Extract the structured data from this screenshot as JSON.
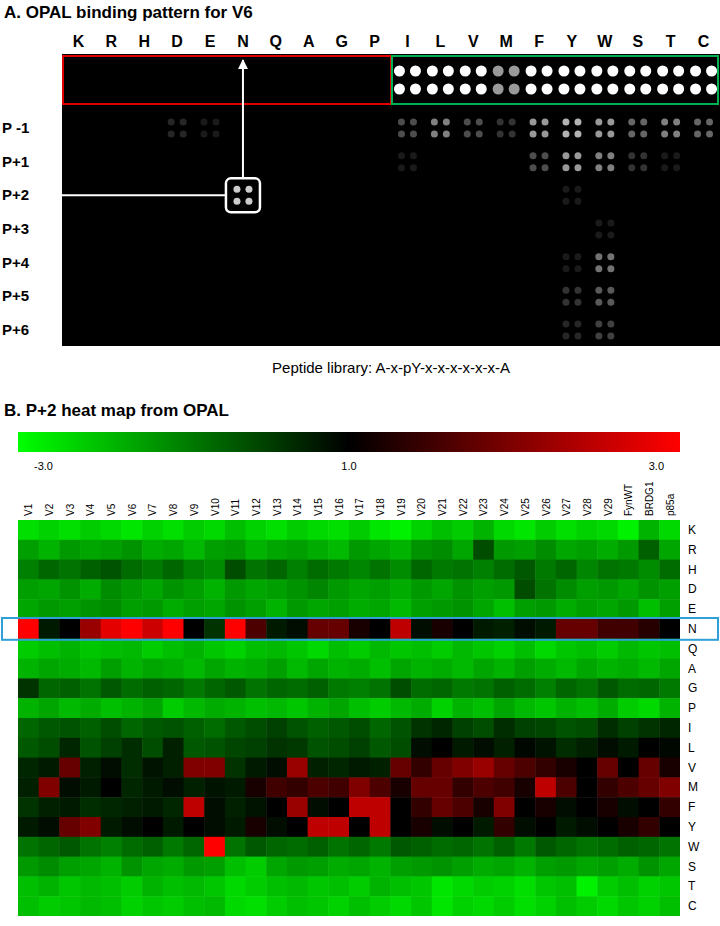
{
  "chart_data": [
    {
      "type": "dot_array",
      "title": "A. OPAL binding pattern for V6",
      "caption": "Peptide library: A-x-pY-x-x-x-x-x-x-A",
      "x": [
        "K",
        "R",
        "H",
        "D",
        "E",
        "N",
        "Q",
        "A",
        "G",
        "P",
        "I",
        "L",
        "V",
        "M",
        "F",
        "Y",
        "W",
        "S",
        "T",
        "C"
      ],
      "y": [
        null,
        "P -1",
        "P+1",
        "P+2",
        "P+3",
        "P+4",
        "P+5",
        "P+6"
      ],
      "zlim": [
        0,
        1
      ],
      "cells": [
        [
          0,
          0,
          0,
          0,
          0,
          0,
          0,
          0,
          0,
          0,
          1,
          1,
          1,
          0.6,
          1,
          1,
          1,
          1,
          1,
          1
        ],
        [
          0,
          0,
          0,
          0.15,
          0.1,
          0,
          0,
          0,
          0,
          0,
          0.3,
          0.5,
          0.3,
          0.2,
          0.6,
          0.7,
          0.6,
          0.4,
          0.5,
          0.4
        ],
        [
          0,
          0,
          0,
          0,
          0,
          0,
          0,
          0,
          0,
          0,
          0.1,
          0,
          0,
          0,
          0.3,
          0.6,
          0.5,
          0.2,
          0.1,
          0
        ],
        [
          0,
          0,
          0,
          0,
          0,
          0.8,
          0,
          0,
          0,
          0,
          0,
          0,
          0,
          0,
          0,
          0.1,
          0,
          0,
          0,
          0
        ],
        [
          0,
          0,
          0,
          0,
          0,
          0,
          0,
          0,
          0,
          0,
          0,
          0,
          0,
          0,
          0,
          0,
          0.1,
          0,
          0,
          0
        ],
        [
          0,
          0,
          0,
          0,
          0,
          0,
          0,
          0,
          0,
          0,
          0,
          0,
          0,
          0,
          0,
          0.1,
          0.45,
          0,
          0,
          0
        ],
        [
          0,
          0,
          0,
          0,
          0,
          0,
          0,
          0,
          0,
          0,
          0,
          0,
          0,
          0,
          0,
          0.2,
          0.35,
          0,
          0,
          0
        ],
        [
          0,
          0,
          0,
          0,
          0,
          0,
          0,
          0,
          0,
          0,
          0,
          0,
          0,
          0,
          0,
          0.15,
          0.25,
          0,
          0,
          0
        ]
      ]
    },
    {
      "type": "heatmap",
      "title": "B. P+2 heat map from OPAL",
      "x": [
        "V1",
        "V2",
        "V3",
        "V4",
        "V5",
        "V6",
        "V7",
        "V8",
        "V9",
        "V10",
        "V11",
        "V12",
        "V13",
        "V14",
        "V15",
        "V16",
        "V17",
        "V18",
        "V19",
        "V20",
        "V21",
        "V22",
        "V23",
        "V24",
        "V25",
        "V26",
        "V27",
        "V28",
        "V29",
        "FynWT",
        "BRDG1",
        "p85a"
      ],
      "y": [
        "K",
        "R",
        "H",
        "D",
        "E",
        "N",
        "Q",
        "A",
        "G",
        "P",
        "I",
        "L",
        "V",
        "M",
        "F",
        "Y",
        "W",
        "S",
        "T",
        "C"
      ],
      "colorbar": {
        "range": [
          -3,
          3
        ],
        "ticks": [
          {
            "value": -3,
            "label": "-3.0"
          },
          {
            "value": 1,
            "label": "1.0"
          },
          {
            "value": 3,
            "label": "3.0"
          }
        ]
      },
      "cells": [
        [
          -2.5,
          -2.3,
          -2.5,
          -2.2,
          -2.4,
          -2.6,
          -2.3,
          -2.5,
          -2.2,
          -2.4,
          -2.0,
          -2.3,
          -2.5,
          -2.2,
          -2.4,
          -2.5,
          -2.2,
          -2.6,
          -2.8,
          -2.3,
          -2.0,
          -2.2,
          -1.8,
          -2.4,
          -2.6,
          -2.2,
          -2.5,
          -2.3,
          -2.4,
          -2.8,
          -1.8,
          -2.4
        ],
        [
          -1.5,
          -1.8,
          -1.4,
          -1.6,
          -1.5,
          -1.3,
          -1.7,
          -1.6,
          -1.9,
          -1.5,
          -1.4,
          -1.8,
          -1.6,
          -1.5,
          -1.7,
          -1.9,
          -1.4,
          -1.6,
          -1.8,
          -1.3,
          -1.2,
          -1.6,
          -0.2,
          -1.4,
          -1.5,
          -1.2,
          -1.6,
          -1.5,
          -1.7,
          -1.4,
          -0.5,
          -1.6
        ],
        [
          -1.0,
          -0.6,
          -0.8,
          -0.5,
          -0.3,
          -0.7,
          -0.9,
          -0.6,
          -1.0,
          -1.2,
          -0.2,
          -0.8,
          -0.6,
          -1.0,
          -0.7,
          -0.9,
          -1.1,
          -0.8,
          -1.2,
          -0.6,
          -0.9,
          -0.8,
          -1.0,
          -0.7,
          -0.4,
          -0.9,
          -0.6,
          -1.1,
          -0.8,
          -0.9,
          -1.2,
          -0.7
        ],
        [
          -1.5,
          -1.6,
          -1.3,
          -1.7,
          -1.2,
          -1.4,
          -1.6,
          -1.3,
          -1.5,
          -1.8,
          -1.4,
          -1.6,
          -1.5,
          -1.3,
          -1.1,
          -1.4,
          -1.6,
          -1.5,
          -1.7,
          -1.4,
          -1.6,
          -1.3,
          -1.5,
          -1.4,
          -0.2,
          -0.8,
          -1.2,
          -1.5,
          -1.4,
          -1.6,
          -1.3,
          -1.5
        ],
        [
          -1.6,
          -1.4,
          -1.5,
          -1.3,
          -1.2,
          -1.5,
          -1.4,
          -1.7,
          -1.5,
          -1.6,
          -1.3,
          -1.5,
          -1.8,
          -1.4,
          -1.6,
          -1.5,
          -1.7,
          -1.6,
          -1.9,
          -1.5,
          -1.4,
          -1.3,
          -1.6,
          -2.0,
          -1.5,
          -1.4,
          -1.7,
          -1.5,
          -1.6,
          -1.4,
          -2.0,
          -1.5
        ],
        [
          3.0,
          0.6,
          1.0,
          2.2,
          2.8,
          3.0,
          2.6,
          3.0,
          1.0,
          0.2,
          3.0,
          1.6,
          0.6,
          0.8,
          1.8,
          1.8,
          1.2,
          1.0,
          2.5,
          0.8,
          1.2,
          1.0,
          0.6,
          0.5,
          0.8,
          0.6,
          1.8,
          1.8,
          1.5,
          1.5,
          1.3,
          1.0
        ],
        [
          -2.2,
          -2.0,
          -1.8,
          -2.1,
          -2.0,
          -1.9,
          -2.2,
          -2.0,
          -1.8,
          -2.1,
          -2.3,
          -2.0,
          -1.9,
          -2.1,
          -2.4,
          -2.0,
          -2.2,
          -1.9,
          -2.1,
          -2.0,
          -2.2,
          -1.9,
          -2.1,
          -2.3,
          -2.0,
          -2.4,
          -2.1,
          -2.0,
          -2.2,
          -1.9,
          -2.1,
          -2.0
        ],
        [
          -1.8,
          -1.6,
          -1.7,
          -1.9,
          -1.5,
          -1.8,
          -1.6,
          -1.7,
          -1.9,
          -1.6,
          -1.8,
          -1.7,
          -1.5,
          -1.9,
          -1.6,
          -1.8,
          -1.7,
          -2.0,
          -1.6,
          -1.8,
          -1.7,
          -1.9,
          -1.6,
          -1.8,
          -1.5,
          -1.7,
          -1.9,
          -1.6,
          -1.8,
          -1.7,
          -1.9,
          -1.6
        ],
        [
          0.2,
          -0.6,
          -0.5,
          -0.8,
          -0.4,
          -0.7,
          -0.5,
          -0.6,
          -0.9,
          -0.6,
          -0.4,
          -0.8,
          -0.6,
          -0.7,
          -0.5,
          -0.9,
          -1.0,
          -0.8,
          -0.2,
          -0.7,
          -0.6,
          -0.9,
          -0.8,
          -0.5,
          -0.7,
          -1.0,
          -0.6,
          -0.8,
          -0.4,
          -0.7,
          -0.6,
          -0.9
        ],
        [
          -1.8,
          -1.6,
          -1.9,
          -1.7,
          -2.0,
          -1.8,
          -1.6,
          -2.2,
          -1.9,
          -1.7,
          -1.8,
          -2.0,
          -1.9,
          -2.1,
          -1.8,
          -1.6,
          -2.0,
          -2.2,
          -1.9,
          -1.7,
          -2.3,
          -1.8,
          -2.0,
          -1.6,
          -1.9,
          -2.1,
          -1.8,
          -2.0,
          -1.7,
          -2.2,
          -2.4,
          -1.8
        ],
        [
          -0.6,
          -0.4,
          -0.3,
          -0.5,
          -0.2,
          -0.6,
          -0.4,
          -0.3,
          -0.5,
          -0.7,
          -0.4,
          -0.2,
          0.0,
          -0.3,
          -0.5,
          -0.4,
          -0.2,
          -0.6,
          -0.3,
          0.2,
          0.4,
          0.0,
          -0.2,
          0.3,
          0.0,
          -0.1,
          -0.3,
          -0.2,
          0.3,
          0.0,
          0.2,
          0.4
        ],
        [
          -0.4,
          -0.2,
          0.4,
          -0.3,
          0.0,
          0.3,
          -0.2,
          0.5,
          -0.4,
          -0.3,
          -0.1,
          0.0,
          0.2,
          0.1,
          -0.3,
          -0.2,
          0.0,
          -0.4,
          -0.2,
          0.8,
          1.0,
          0.6,
          0.8,
          0.5,
          0.9,
          0.7,
          0.3,
          0.5,
          0.8,
          0.6,
          1.0,
          0.9
        ],
        [
          0.4,
          0.6,
          1.8,
          0.5,
          0.8,
          0.3,
          0.7,
          0.5,
          2.0,
          2.0,
          0.2,
          0.6,
          0.8,
          2.2,
          0.5,
          0.4,
          0.6,
          0.5,
          1.8,
          1.4,
          1.8,
          2.0,
          2.2,
          1.8,
          1.6,
          1.4,
          1.2,
          1.0,
          1.8,
          1.0,
          1.8,
          1.2
        ],
        [
          0.5,
          2.0,
          0.8,
          0.6,
          1.0,
          0.4,
          0.6,
          0.8,
          0.5,
          0.7,
          0.6,
          1.2,
          1.5,
          1.4,
          1.6,
          1.5,
          2.0,
          1.6,
          1.2,
          1.8,
          1.8,
          1.4,
          1.6,
          1.5,
          1.2,
          2.5,
          1.6,
          1.0,
          1.4,
          1.6,
          1.8,
          2.0
        ],
        [
          0.2,
          0.5,
          0.6,
          0.3,
          0.4,
          0.5,
          0.6,
          0.4,
          2.5,
          0.8,
          0.5,
          0.7,
          1.0,
          2.2,
          0.8,
          1.0,
          2.5,
          2.5,
          1.0,
          1.4,
          1.8,
          1.6,
          1.2,
          2.0,
          1.0,
          1.2,
          0.8,
          1.0,
          1.2,
          0.8,
          1.0,
          1.4
        ],
        [
          0.6,
          0.8,
          1.8,
          2.0,
          0.6,
          0.8,
          1.0,
          0.6,
          1.0,
          0.8,
          0.6,
          1.2,
          0.8,
          1.0,
          2.5,
          2.5,
          1.0,
          2.5,
          1.0,
          1.2,
          0.8,
          1.0,
          0.6,
          1.4,
          0.8,
          1.0,
          0.6,
          0.8,
          1.0,
          1.2,
          1.4,
          1.0
        ],
        [
          -0.8,
          -0.6,
          -0.4,
          -0.8,
          -1.0,
          -0.7,
          -0.5,
          -0.9,
          -0.6,
          3.0,
          -0.8,
          -0.4,
          -0.6,
          -0.7,
          -0.5,
          -0.8,
          -0.6,
          -0.9,
          -0.4,
          -0.5,
          -0.7,
          -0.6,
          -0.8,
          -0.5,
          -0.9,
          -0.4,
          -0.6,
          -0.8,
          -0.7,
          -0.5,
          -0.6,
          -0.8
        ],
        [
          -1.4,
          -1.2,
          -1.5,
          -1.6,
          -1.8,
          -1.3,
          -1.6,
          -1.7,
          -1.4,
          -1.5,
          -2.0,
          -2.2,
          -1.6,
          -1.4,
          -1.5,
          -1.7,
          -1.6,
          -1.8,
          -1.5,
          -1.4,
          -1.3,
          -1.5,
          -1.7,
          -1.6,
          -1.8,
          -1.5,
          -1.4,
          -1.6,
          -1.5,
          -1.7,
          -1.3,
          -1.6
        ],
        [
          -2.0,
          -1.8,
          -2.1,
          -1.9,
          -2.0,
          -2.2,
          -1.8,
          -2.0,
          -1.9,
          -2.1,
          -2.4,
          -2.2,
          -2.0,
          -1.9,
          -2.1,
          -2.0,
          -2.2,
          -1.8,
          -2.0,
          -2.1,
          -2.6,
          -2.4,
          -2.2,
          -2.3,
          -2.5,
          -2.1,
          -2.0,
          -2.8,
          -2.2,
          -2.0,
          -2.3,
          -2.1
        ],
        [
          -2.0,
          -2.2,
          -2.1,
          -1.9,
          -2.0,
          -2.3,
          -2.1,
          -2.2,
          -2.0,
          -1.9,
          -2.4,
          -2.5,
          -2.2,
          -2.0,
          -2.1,
          -2.3,
          -2.0,
          -2.2,
          -2.4,
          -2.1,
          -2.6,
          -2.3,
          -2.4,
          -2.2,
          -2.5,
          -2.3,
          -2.0,
          -2.2,
          -2.4,
          -2.1,
          -2.3,
          -2.0
        ]
      ]
    }
  ]
}
